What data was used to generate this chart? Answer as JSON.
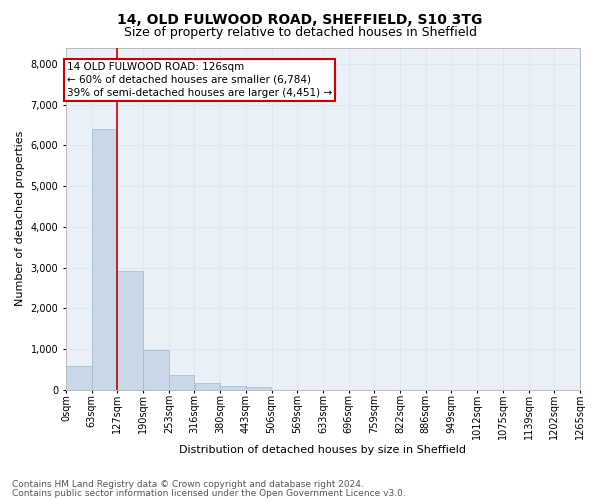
{
  "title1": "14, OLD FULWOOD ROAD, SHEFFIELD, S10 3TG",
  "title2": "Size of property relative to detached houses in Sheffield",
  "xlabel": "Distribution of detached houses by size in Sheffield",
  "ylabel": "Number of detached properties",
  "bin_labels": [
    "0sqm",
    "63sqm",
    "127sqm",
    "190sqm",
    "253sqm",
    "316sqm",
    "380sqm",
    "443sqm",
    "506sqm",
    "569sqm",
    "633sqm",
    "696sqm",
    "759sqm",
    "822sqm",
    "886sqm",
    "949sqm",
    "1012sqm",
    "1075sqm",
    "1139sqm",
    "1202sqm",
    "1265sqm"
  ],
  "bar_heights": [
    580,
    6400,
    2920,
    970,
    360,
    160,
    90,
    60,
    0,
    0,
    0,
    0,
    0,
    0,
    0,
    0,
    0,
    0,
    0,
    0
  ],
  "bar_color": "#c8d8e8",
  "bar_edge_color": "#a0b8cc",
  "property_line_x": 126,
  "bin_width": 63,
  "annotation_text": "14 OLD FULWOOD ROAD: 126sqm\n← 60% of detached houses are smaller (6,784)\n39% of semi-detached houses are larger (4,451) →",
  "annotation_box_color": "#cc0000",
  "annotation_bg": "#ffffff",
  "vline_color": "#cc0000",
  "footer1": "Contains HM Land Registry data © Crown copyright and database right 2024.",
  "footer2": "Contains public sector information licensed under the Open Government Licence v3.0.",
  "ylim": [
    0,
    8400
  ],
  "yticks": [
    0,
    1000,
    2000,
    3000,
    4000,
    5000,
    6000,
    7000,
    8000
  ],
  "grid_color": "#dde8f0",
  "bg_color": "#eaf0f8",
  "title1_fontsize": 10,
  "title2_fontsize": 9,
  "axis_label_fontsize": 8,
  "tick_fontsize": 7,
  "annotation_fontsize": 7.5,
  "footer_fontsize": 6.5
}
